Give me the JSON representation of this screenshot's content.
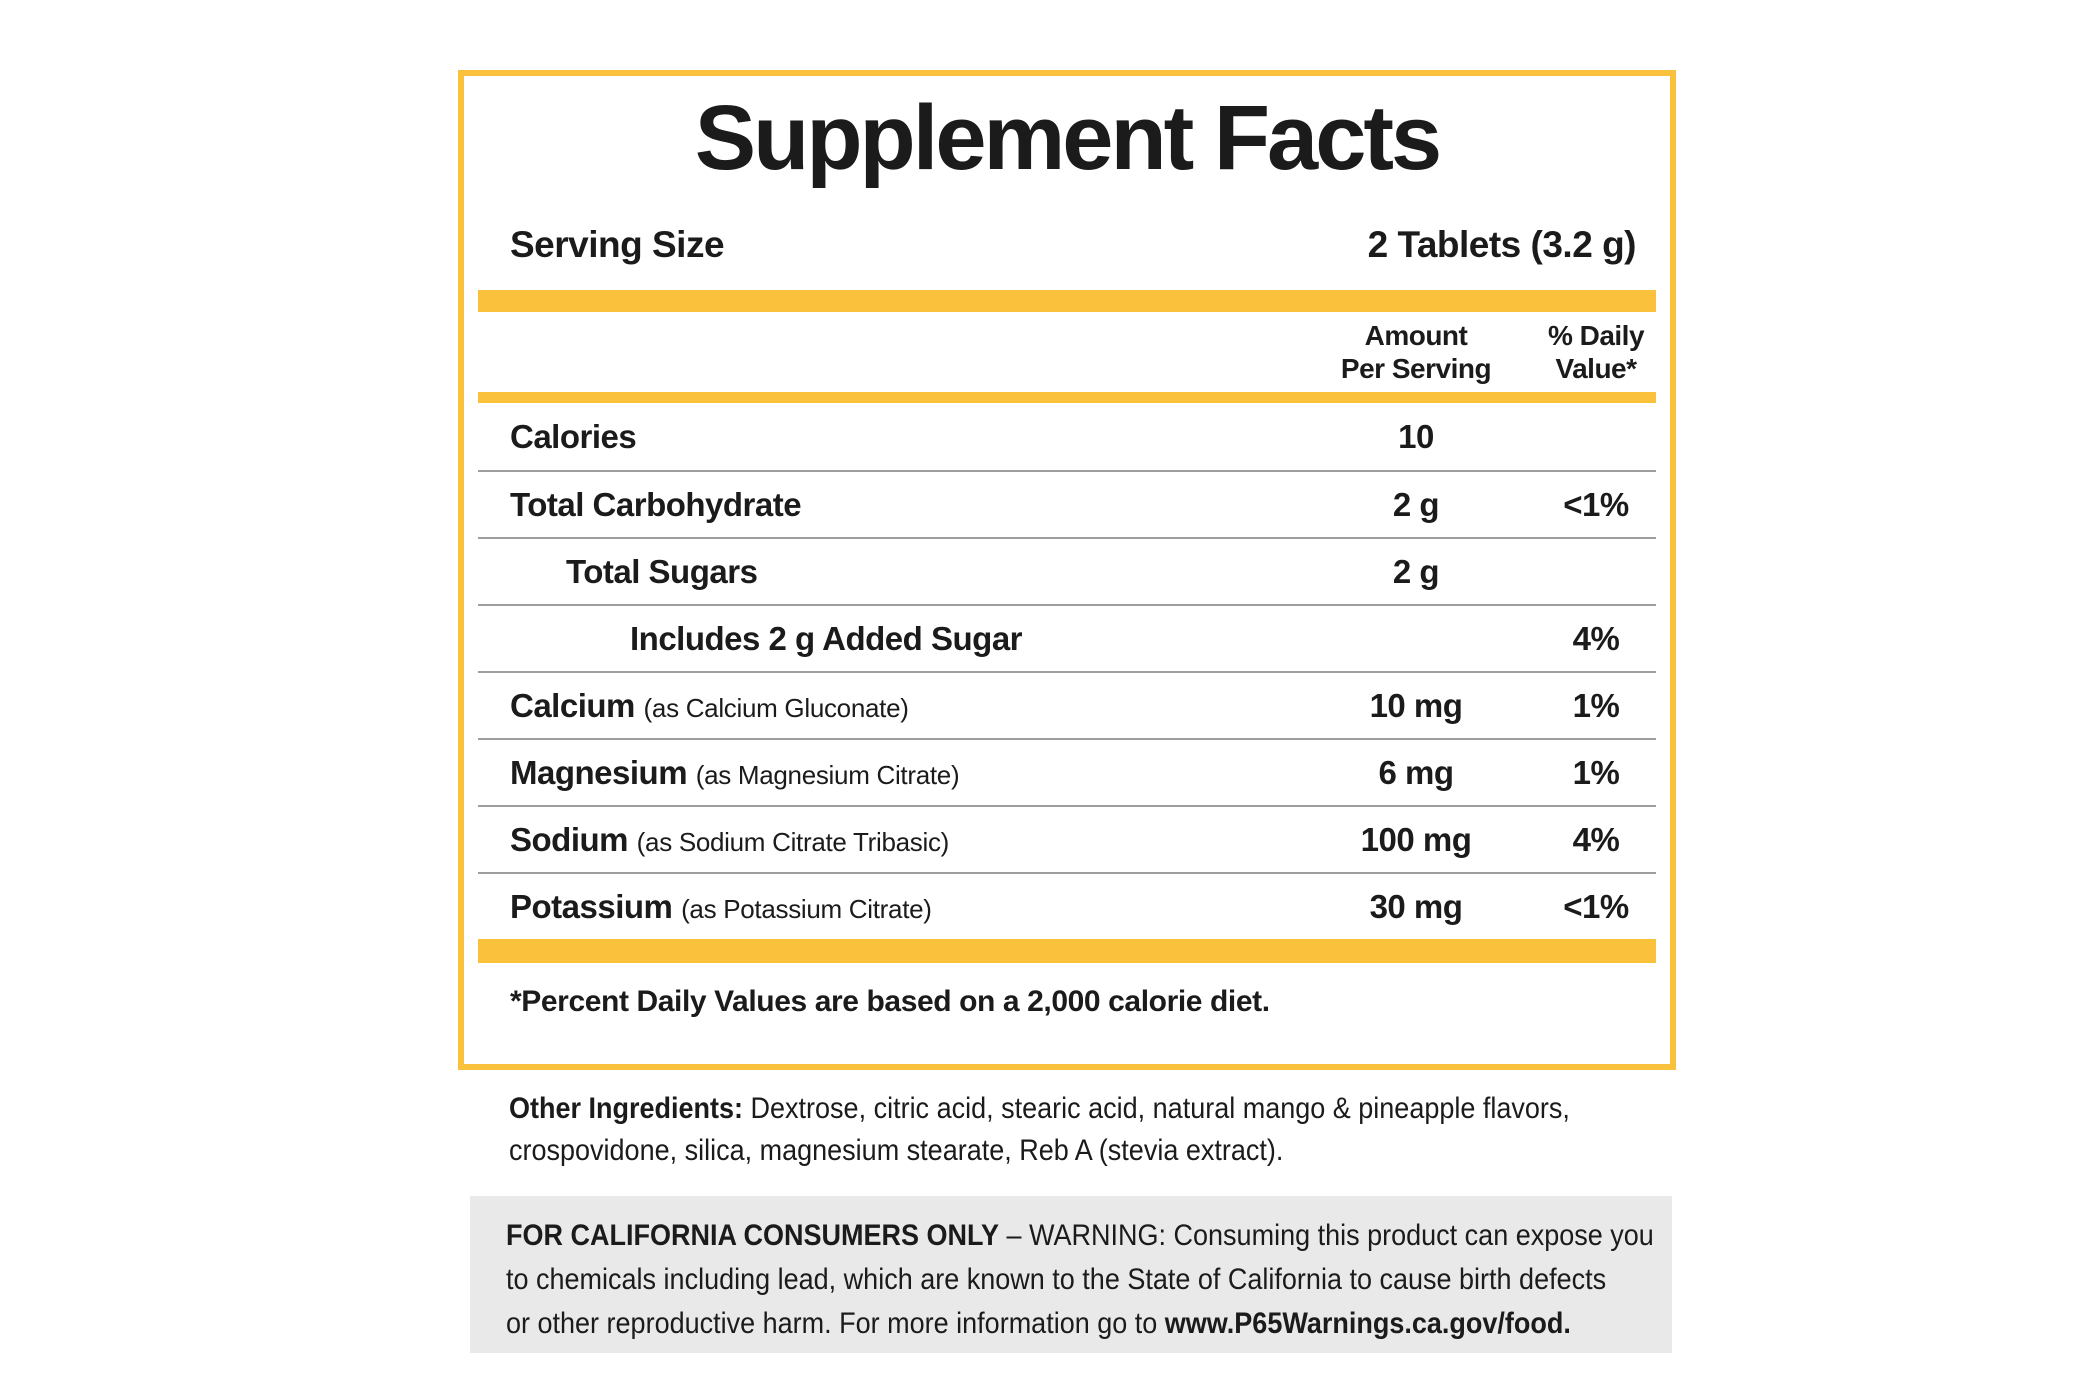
{
  "supplement_facts": {
    "title": "Supplement Facts",
    "serving_size": {
      "label": "Serving Size",
      "value": "2 Tablets (3.2 g)"
    },
    "columns": {
      "amount_line1": "Amount",
      "amount_line2": "Per Serving",
      "dv_line1": "% Daily",
      "dv_line2": "Value*"
    },
    "rows": [
      {
        "name": "Calories",
        "qualifier": "",
        "amount": "10",
        "dv": ""
      },
      {
        "name": "Total Carbohydrate",
        "qualifier": "",
        "amount": "2 g",
        "dv": "<1%"
      },
      {
        "name": "Total Sugars",
        "qualifier": "",
        "amount": "2 g",
        "dv": ""
      },
      {
        "name": "Includes 2 g Added Sugar",
        "qualifier": "",
        "amount": "",
        "dv": "4%"
      },
      {
        "name": "Calcium",
        "qualifier": "(as Calcium Gluconate)",
        "amount": "10 mg",
        "dv": "1%"
      },
      {
        "name": "Magnesium",
        "qualifier": "(as Magnesium Citrate)",
        "amount": "6 mg",
        "dv": "1%"
      },
      {
        "name": "Sodium",
        "qualifier": "(as Sodium Citrate Tribasic)",
        "amount": "100 mg",
        "dv": "4%"
      },
      {
        "name": "Potassium",
        "qualifier": "(as Potassium Citrate)",
        "amount": "30 mg",
        "dv": "<1%"
      }
    ],
    "footnote": "*Percent Daily Values are based on a 2,000 calorie diet."
  },
  "other_ingredients": {
    "line1_bold": "Other Ingredients:",
    "line1_text": " Dextrose, citric acid, stearic acid, natural mango & pineapple flavors,",
    "line2_text": "crospovidone, silica, magnesium stearate, Reb A (stevia extract)."
  },
  "california_warning": {
    "line1_bold": "FOR CALIFORNIA CONSUMERS ONLY",
    "line1_text": " – WARNING: Consuming this product can expose you",
    "line2_text": "to chemicals including lead, which are known to the State of California to cause birth defects",
    "line3_text": "or other reproductive harm. For more information go to ",
    "line3_bold": "www.P65Warnings.ca.gov/food."
  },
  "colors": {
    "accent_yellow": "#F9C13C",
    "separator_gray": "#9E9E9E",
    "warning_background": "#E9E9E9",
    "text_black": "#1B1B1B"
  }
}
